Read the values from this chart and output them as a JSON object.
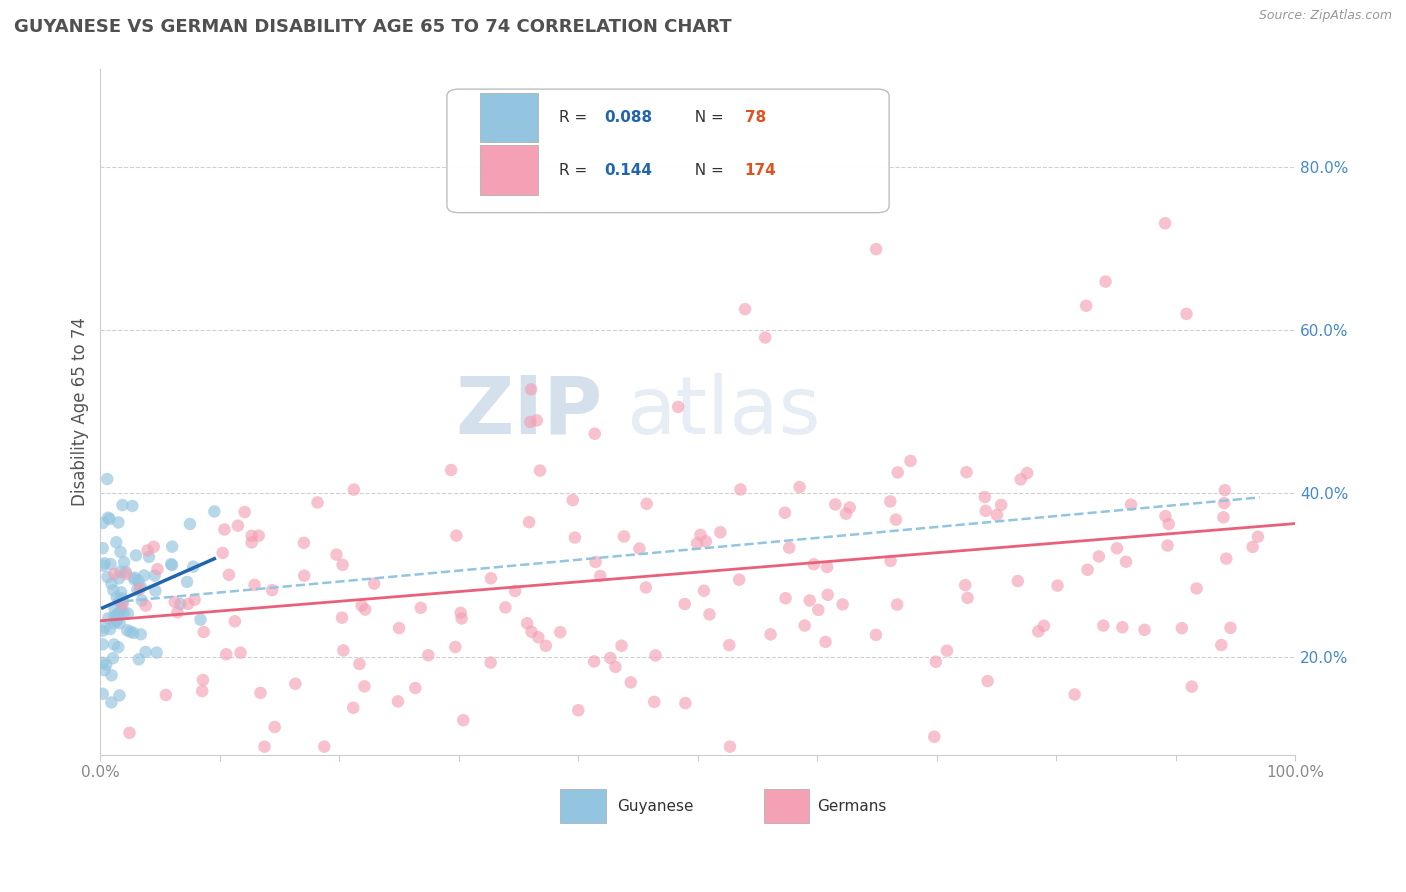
{
  "title": "GUYANESE VS GERMAN DISABILITY AGE 65 TO 74 CORRELATION CHART",
  "source_text": "Source: ZipAtlas.com",
  "ylabel": "Disability Age 65 to 74",
  "xlim": [
    0.0,
    1.0
  ],
  "ylim": [
    0.08,
    0.92
  ],
  "xticks": [
    0.0,
    0.1,
    0.2,
    0.3,
    0.4,
    0.5,
    0.6,
    0.7,
    0.8,
    0.9,
    1.0
  ],
  "xticklabels": [
    "0.0%",
    "",
    "",
    "",
    "",
    "",
    "",
    "",
    "",
    "",
    "100.0%"
  ],
  "yticks_right": [
    0.2,
    0.4,
    0.6,
    0.8
  ],
  "yticklabels_right": [
    "20.0%",
    "40.0%",
    "60.0%",
    "80.0%"
  ],
  "guyanese_color": "#93c4e0",
  "german_color": "#f4a0b5",
  "guyanese_line_color": "#2166ac",
  "german_line_color": "#e8607a",
  "dashed_line_color": "#93c4e0",
  "marker_size": 9,
  "guyanese_R": 0.088,
  "guyanese_N": 78,
  "german_R": 0.144,
  "german_N": 174,
  "watermark_zip": "ZIP",
  "watermark_atlas": "atlas",
  "background_color": "#ffffff",
  "grid_color": "#cccccc",
  "title_color": "#505050",
  "legend_text_color": "#333333",
  "legend_R_color": "#2166ac",
  "legend_N_color": "#e05020",
  "axis_label_color": "#555555",
  "tick_color": "#888888"
}
